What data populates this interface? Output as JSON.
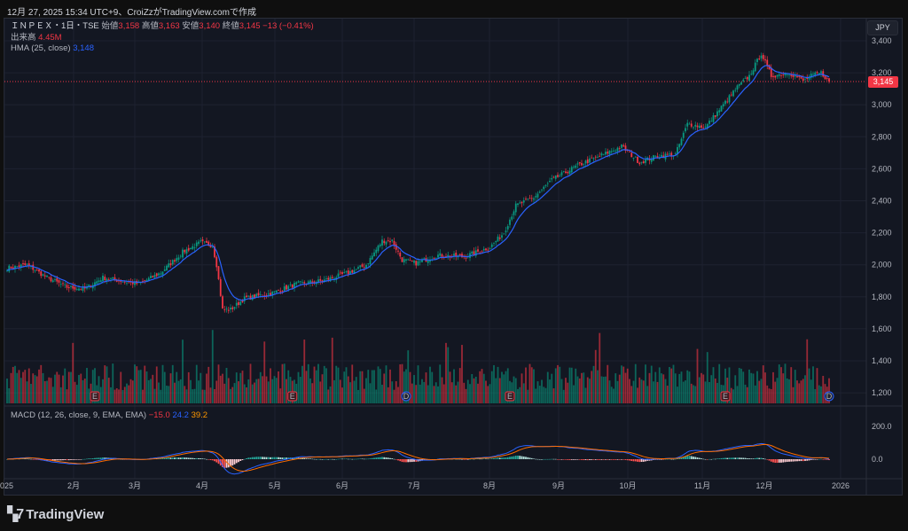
{
  "caption": "12月 27, 2025 15:34 UTC+9、CroiZzがTradingView.comで作成",
  "legend": {
    "symbol": "ＩＮＰＥＸ・1日・TSE",
    "open_label": "始値",
    "open": "3,158",
    "high_label": "高値",
    "high": "3,163",
    "low_label": "安値",
    "low": "3,140",
    "close_label": "終値",
    "close": "3,145",
    "change": "−13 (−0.41%)",
    "volume_label": "出来高",
    "volume": "4.45M",
    "hma_label": "HMA (25, close)",
    "hma": "3,148"
  },
  "macd": {
    "label": "MACD (12, 26, close, 9, EMA, EMA)",
    "hist": "−15.0",
    "macd": "24.2",
    "signal": "39.2",
    "ticks": [
      "200.0",
      "0.0"
    ]
  },
  "currency": "JPY",
  "last_price": "3,145",
  "logo": "TradingView",
  "colors": {
    "up": "#089981",
    "down": "#f23645",
    "hma": "#2962ff",
    "signal": "#ff6d00"
  },
  "chart_data": {
    "type": "candlestick",
    "yticks": [
      3400,
      3200,
      3000,
      2800,
      2600,
      2400,
      2200,
      2000,
      1800,
      1600,
      1400,
      1200
    ],
    "ytick_labels": [
      "3,400",
      "3,200",
      "3,000",
      "2,800",
      "2,600",
      "2,400",
      "2,200",
      "2,000",
      "1,800",
      "1,600",
      "1,400",
      "1,200"
    ],
    "xticks": [
      "2025",
      "2月",
      "3月",
      "4月",
      "5月",
      "6月",
      "7月",
      "8月",
      "9月",
      "10月",
      "11月",
      "12月",
      "2026"
    ],
    "close_keypoints_by_day": [
      [
        0,
        1980
      ],
      [
        10,
        2000
      ],
      [
        20,
        1920
      ],
      [
        30,
        1860
      ],
      [
        39,
        1850
      ],
      [
        48,
        1920
      ],
      [
        57,
        1900
      ],
      [
        66,
        1880
      ],
      [
        77,
        1950
      ],
      [
        88,
        2080
      ],
      [
        97,
        2140
      ],
      [
        103,
        2120
      ],
      [
        105,
        2000
      ],
      [
        108,
        1720
      ],
      [
        112,
        1720
      ],
      [
        119,
        1790
      ],
      [
        132,
        1820
      ],
      [
        145,
        1880
      ],
      [
        158,
        1900
      ],
      [
        171,
        1950
      ],
      [
        180,
        2000
      ],
      [
        188,
        2150
      ],
      [
        193,
        2150
      ],
      [
        198,
        2030
      ],
      [
        205,
        2010
      ],
      [
        216,
        2060
      ],
      [
        229,
        2050
      ],
      [
        242,
        2110
      ],
      [
        249,
        2200
      ],
      [
        255,
        2370
      ],
      [
        264,
        2420
      ],
      [
        273,
        2530
      ],
      [
        286,
        2620
      ],
      [
        299,
        2690
      ],
      [
        308,
        2740
      ],
      [
        317,
        2640
      ],
      [
        326,
        2680
      ],
      [
        335,
        2690
      ],
      [
        341,
        2880
      ],
      [
        350,
        2860
      ],
      [
        359,
        3000
      ],
      [
        366,
        3110
      ],
      [
        372,
        3180
      ],
      [
        378,
        3320
      ],
      [
        383,
        3180
      ],
      [
        392,
        3200
      ],
      [
        399,
        3150
      ],
      [
        403,
        3180
      ],
      [
        408,
        3200
      ],
      [
        412,
        3145
      ]
    ],
    "markers": [
      {
        "type": "E",
        "day": 44
      },
      {
        "type": "E",
        "day": 143
      },
      {
        "type": "D",
        "day": 200
      },
      {
        "type": "E",
        "day": 252
      },
      {
        "type": "E",
        "day": 360
      },
      {
        "type": "D",
        "day": 412
      }
    ]
  }
}
